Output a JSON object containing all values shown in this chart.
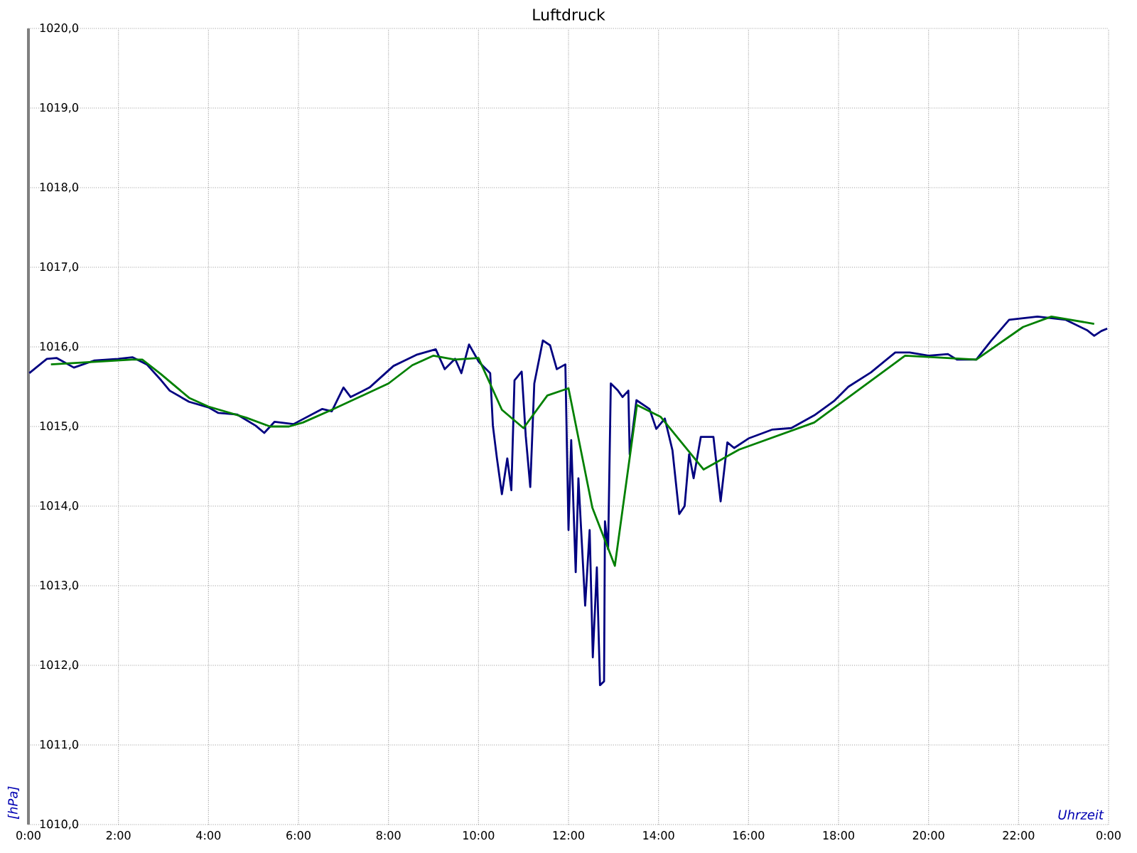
{
  "chart_data": {
    "type": "line",
    "title": "Luftdruck",
    "xlabel": "Uhrzeit",
    "ylabel": "[hPa]",
    "xlim": [
      0,
      24
    ],
    "ylim": [
      1010,
      1020
    ],
    "xticks": [
      {
        "value": 0,
        "label": "0:00"
      },
      {
        "value": 2,
        "label": "2:00"
      },
      {
        "value": 4,
        "label": "4:00"
      },
      {
        "value": 6,
        "label": "6:00"
      },
      {
        "value": 8,
        "label": "8:00"
      },
      {
        "value": 10,
        "label": "10:00"
      },
      {
        "value": 12,
        "label": "12:00"
      },
      {
        "value": 14,
        "label": "14:00"
      },
      {
        "value": 16,
        "label": "16:00"
      },
      {
        "value": 18,
        "label": "18:00"
      },
      {
        "value": 20,
        "label": "20:00"
      },
      {
        "value": 22,
        "label": "22:00"
      },
      {
        "value": 24,
        "label": "0:00"
      }
    ],
    "yticks": [
      {
        "value": 1010,
        "label": "1010,0"
      },
      {
        "value": 1011,
        "label": "1011,0"
      },
      {
        "value": 1012,
        "label": "1012,0"
      },
      {
        "value": 1013,
        "label": "1013,0"
      },
      {
        "value": 1014,
        "label": "1014,0"
      },
      {
        "value": 1015,
        "label": "1015,0"
      },
      {
        "value": 1016,
        "label": "1016,0"
      },
      {
        "value": 1017,
        "label": "1017,0"
      },
      {
        "value": 1018,
        "label": "1018,0"
      },
      {
        "value": 1019,
        "label": "1019,0"
      },
      {
        "value": 1020,
        "label": "1020,0"
      }
    ],
    "grid": true,
    "marker": "none",
    "series": [
      {
        "color": "#000080",
        "x": [
          0.02,
          0.41,
          0.63,
          1.01,
          1.47,
          1.99,
          2.31,
          2.63,
          2.95,
          3.14,
          3.57,
          4.0,
          4.22,
          4.64,
          5.05,
          5.24,
          5.47,
          5.89,
          6.53,
          6.74,
          7.0,
          7.16,
          7.58,
          8.11,
          8.62,
          9.05,
          9.25,
          9.48,
          9.62,
          9.79,
          10.01,
          10.26,
          10.32,
          10.41,
          10.52,
          10.64,
          10.73,
          10.8,
          10.96,
          11.05,
          11.15,
          11.24,
          11.43,
          11.59,
          11.74,
          11.93,
          12.0,
          12.06,
          12.16,
          12.22,
          12.37,
          12.47,
          12.54,
          12.63,
          12.7,
          12.79,
          12.81,
          12.88,
          12.94,
          13.1,
          13.2,
          13.33,
          13.36,
          13.51,
          13.8,
          13.95,
          14.14,
          14.31,
          14.46,
          14.58,
          14.68,
          14.78,
          14.94,
          15.22,
          15.38,
          15.53,
          15.68,
          16.0,
          16.52,
          16.95,
          17.46,
          17.9,
          18.22,
          18.72,
          19.26,
          19.58,
          20.0,
          20.43,
          20.63,
          21.06,
          21.38,
          21.79,
          22.42,
          23.05,
          23.52,
          23.68,
          23.84,
          23.97
        ],
        "values": [
          1015.67,
          1015.85,
          1015.86,
          1015.74,
          1015.83,
          1015.85,
          1015.87,
          1015.78,
          1015.58,
          1015.45,
          1015.31,
          1015.24,
          1015.17,
          1015.15,
          1015.01,
          1014.92,
          1015.06,
          1015.03,
          1015.22,
          1015.19,
          1015.49,
          1015.37,
          1015.49,
          1015.76,
          1015.9,
          1015.97,
          1015.72,
          1015.85,
          1015.67,
          1016.03,
          1015.81,
          1015.67,
          1015.01,
          1014.6,
          1014.15,
          1014.6,
          1014.2,
          1015.58,
          1015.69,
          1014.88,
          1014.24,
          1015.54,
          1016.08,
          1016.02,
          1015.72,
          1015.78,
          1013.7,
          1014.83,
          1013.17,
          1014.35,
          1012.75,
          1013.7,
          1012.1,
          1013.23,
          1011.75,
          1011.8,
          1013.81,
          1013.46,
          1015.54,
          1015.45,
          1015.37,
          1015.45,
          1014.65,
          1015.33,
          1015.22,
          1014.97,
          1015.1,
          1014.7,
          1013.9,
          1014.0,
          1014.65,
          1014.35,
          1014.87,
          1014.87,
          1014.06,
          1014.8,
          1014.73,
          1014.85,
          1014.96,
          1014.98,
          1015.14,
          1015.32,
          1015.5,
          1015.68,
          1015.93,
          1015.93,
          1015.89,
          1015.91,
          1015.84,
          1015.84,
          1016.07,
          1016.34,
          1016.38,
          1016.34,
          1016.21,
          1016.14,
          1016.2,
          1016.23
        ]
      },
      {
        "color": "#008000",
        "x": [
          0.5,
          2.3,
          2.53,
          2.94,
          3.57,
          4.0,
          4.84,
          5.37,
          5.79,
          6.1,
          6.74,
          8.0,
          8.53,
          9.0,
          9.47,
          10.0,
          10.52,
          11.0,
          11.53,
          12.0,
          12.53,
          13.03,
          13.52,
          14.05,
          15.0,
          15.79,
          17.46,
          19.48,
          21.06,
          22.1,
          22.73,
          23.68
        ],
        "values": [
          1015.78,
          1015.84,
          1015.84,
          1015.66,
          1015.36,
          1015.25,
          1015.11,
          1015.0,
          1015.0,
          1015.05,
          1015.21,
          1015.54,
          1015.77,
          1015.89,
          1015.84,
          1015.86,
          1015.21,
          1014.98,
          1015.39,
          1015.48,
          1013.98,
          1013.25,
          1015.27,
          1015.12,
          1014.46,
          1014.71,
          1015.05,
          1015.89,
          1015.84,
          1016.25,
          1016.38,
          1016.29
        ]
      }
    ]
  }
}
